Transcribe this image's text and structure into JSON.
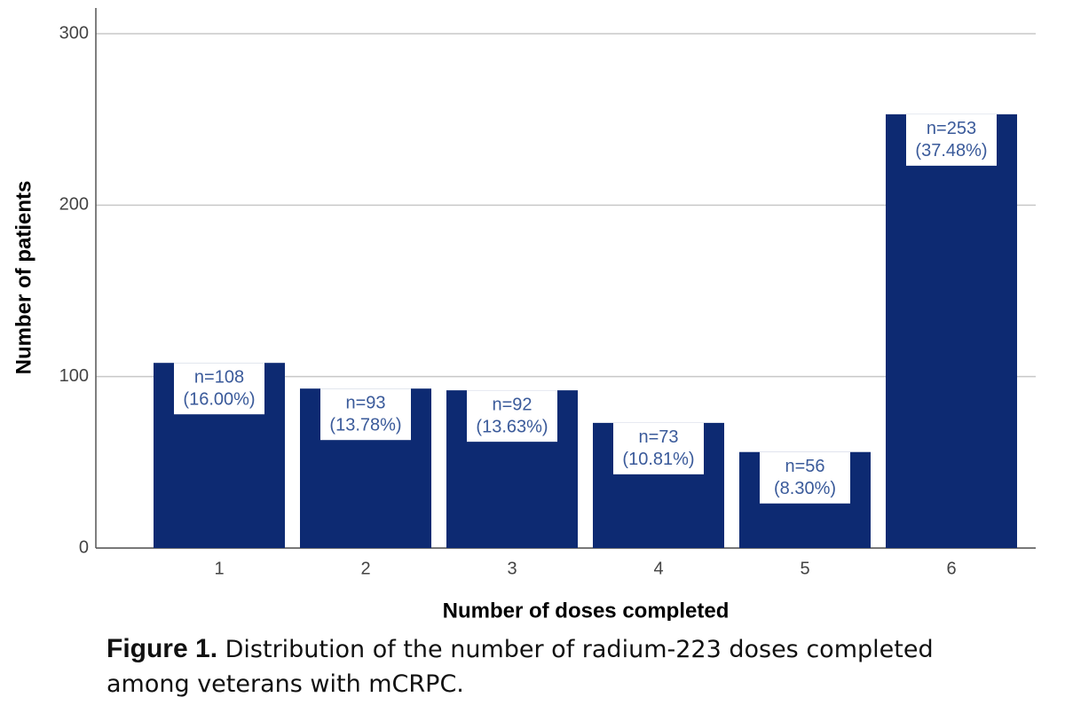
{
  "chart_data": {
    "type": "bar",
    "x_label": "Number of doses completed",
    "y_label": "Number of patients",
    "categories": [
      "1",
      "2",
      "3",
      "4",
      "5",
      "6"
    ],
    "values": [
      108,
      93,
      92,
      73,
      56,
      253
    ],
    "value_labels": [
      "n=108",
      "n=93",
      "n=92",
      "n=73",
      "n=56",
      "n=253"
    ],
    "percent_labels": [
      "(16.00%)",
      "(13.78%)",
      "(13.63%)",
      "(10.81%)",
      "(8.30%)",
      "(37.48%)"
    ],
    "color": "#0d2a72",
    "label_color": "#3a5a9a",
    "ylim": [
      0,
      315
    ],
    "yticks": [
      0,
      100,
      200,
      300
    ],
    "grid": true,
    "caption": {
      "label": "Figure 1.",
      "text": "Distribution of the number of radium-223 doses completed among veterans with mCRPC."
    }
  }
}
